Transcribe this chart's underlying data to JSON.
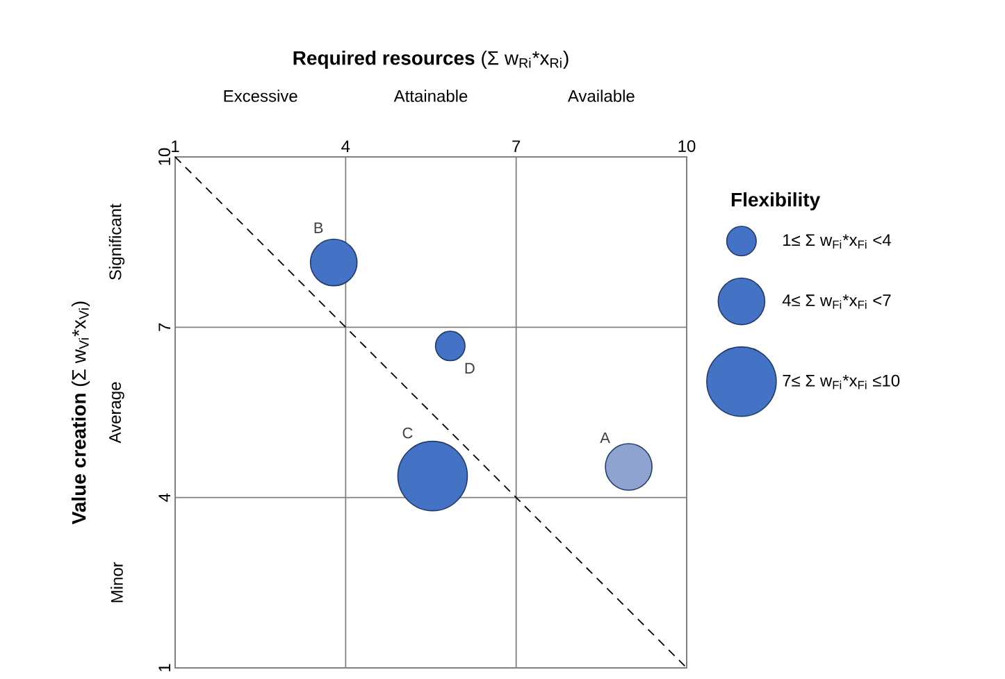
{
  "chart_data": {
    "type": "bubble",
    "xlabel": "**Required resources**   (Σ w$_{Ri}$*x$_{Ri}$)",
    "ylabel": "**Value creation**            (Σ w$_{Vi}$*x$_{Vi}$)",
    "legend_title": "Flexibility",
    "xlim": [
      1,
      10
    ],
    "ylim": [
      1,
      10
    ],
    "xticks": [
      1,
      4,
      7,
      10
    ],
    "yticks": [
      1,
      4,
      7,
      10
    ],
    "grid": true,
    "legend": "right",
    "series": [
      {
        "name": "1≤ Σ w$_{Fi}$*x$_{Fi}$ <4",
        "color": "#4472c4",
        "marker": "circle",
        "x": [
          5.84
        ],
        "values": [
          6.67
        ],
        "sizes": [
          0.18
        ]
      },
      {
        "name": "4≤ Σ w$_{Fi}$*x$_{Fi}$ <7",
        "color": "#4472c4",
        "marker": "circle",
        "colors": [
          "#4472c4",
          "#8fa3d0"
        ],
        "x": [
          3.79,
          8.98
        ],
        "values": [
          8.14,
          4.54
        ],
        "sizes": [
          0.45,
          0.45
        ]
      },
      {
        "name": "7≤ Σ w$_{Fi}$*x$_{Fi}$ ≤10",
        "color": "#4472c4",
        "marker": "circle",
        "x": [
          5.53
        ],
        "values": [
          4.38
        ],
        "sizes": [
          1
        ]
      },
      {
        "type": "line",
        "x": [
          1,
          10
        ],
        "values": [
          10,
          1
        ],
        "color": "#000000",
        "line_style": "dashed"
      }
    ],
    "annotations": [
      {
        "text": "A",
        "x": 8.98,
        "y": 4.54
      },
      {
        "text": "B",
        "x": 3.79,
        "y": 8.14
      },
      {
        "text": "C",
        "x": 5.53,
        "y": 4.38
      },
      {
        "text": "D",
        "x": 5.84,
        "y": 6.67
      },
      "Excessive",
      "Attainable",
      "Available",
      "Minor",
      "Average",
      "Significant"
    ]
  }
}
